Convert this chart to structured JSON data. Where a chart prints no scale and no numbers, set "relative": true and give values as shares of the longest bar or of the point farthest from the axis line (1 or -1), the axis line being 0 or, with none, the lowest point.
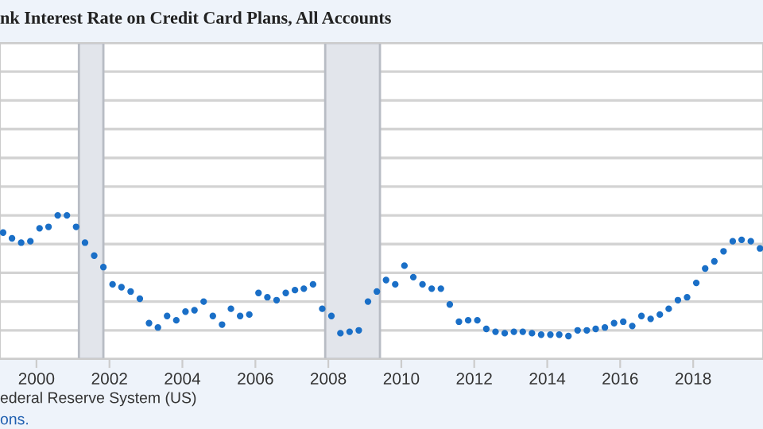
{
  "chart_data": {
    "type": "scatter",
    "title": "nk Interest Rate on Credit Card Plans, All Accounts",
    "relative": true,
    "marker": "circle",
    "grid": "y",
    "xlim": [
      "1999-01",
      "2019-12"
    ],
    "xticks": [
      {
        "value": "2000-01-01",
        "label": "2000"
      },
      {
        "value": "2002-01-01",
        "label": "2002"
      },
      {
        "value": "2004-01-01",
        "label": "2004"
      },
      {
        "value": "2006-01-01",
        "label": "2006"
      },
      {
        "value": "2008-01-01",
        "label": "2008"
      },
      {
        "value": "2010-01-01",
        "label": "2010"
      },
      {
        "value": "2012-01-01",
        "label": "2012"
      },
      {
        "value": "2014-01-01",
        "label": "2014"
      },
      {
        "value": "2016-01-01",
        "label": "2016"
      },
      {
        "value": "2018-01-01",
        "label": "2018"
      }
    ],
    "bands": [
      {
        "axis": "x",
        "from": "2001-03",
        "to": "2001-11",
        "color": "#e2e5eb"
      },
      {
        "axis": "x",
        "from": "2007-12",
        "to": "2009-06",
        "color": "#e2e5eb"
      }
    ],
    "annotations": [
      "ederal Reserve System (US)",
      "ons."
    ],
    "series": [
      {
        "color": "#1a6fc7",
        "x": [
          "1999-02",
          "1999-05",
          "1999-08",
          "1999-11",
          "2000-02",
          "2000-05",
          "2000-08",
          "2000-11",
          "2001-02",
          "2001-05",
          "2001-08",
          "2001-11",
          "2002-02",
          "2002-05",
          "2002-08",
          "2002-11",
          "2003-02",
          "2003-05",
          "2003-08",
          "2003-11",
          "2004-02",
          "2004-05",
          "2004-08",
          "2004-11",
          "2005-02",
          "2005-05",
          "2005-08",
          "2005-11",
          "2006-02",
          "2006-05",
          "2006-08",
          "2006-11",
          "2007-02",
          "2007-05",
          "2007-08",
          "2007-11",
          "2008-02",
          "2008-05",
          "2008-08",
          "2008-11",
          "2009-02",
          "2009-05",
          "2009-08",
          "2009-11",
          "2010-02",
          "2010-05",
          "2010-08",
          "2010-11",
          "2011-02",
          "2011-05",
          "2011-08",
          "2011-11",
          "2012-02",
          "2012-05",
          "2012-08",
          "2012-11",
          "2013-02",
          "2013-05",
          "2013-08",
          "2013-11",
          "2014-02",
          "2014-05",
          "2014-08",
          "2014-11",
          "2015-02",
          "2015-05",
          "2015-08",
          "2015-11",
          "2016-02",
          "2016-05",
          "2016-08",
          "2016-11",
          "2017-02",
          "2017-05",
          "2017-08",
          "2017-11",
          "2018-02",
          "2018-05",
          "2018-08",
          "2018-11",
          "2019-02",
          "2019-05",
          "2019-08",
          "2019-11"
        ],
        "values": [
          0.88,
          0.84,
          0.81,
          0.82,
          0.91,
          0.92,
          1.0,
          1.0,
          0.92,
          0.81,
          0.72,
          0.64,
          0.52,
          0.5,
          0.47,
          0.42,
          0.25,
          0.22,
          0.3,
          0.27,
          0.33,
          0.34,
          0.4,
          0.3,
          0.24,
          0.35,
          0.3,
          0.31,
          0.46,
          0.43,
          0.41,
          0.46,
          0.48,
          0.49,
          0.52,
          0.35,
          0.3,
          0.18,
          0.19,
          0.2,
          0.4,
          0.47,
          0.55,
          0.52,
          0.65,
          0.57,
          0.52,
          0.49,
          0.49,
          0.38,
          0.26,
          0.27,
          0.27,
          0.21,
          0.19,
          0.18,
          0.19,
          0.19,
          0.18,
          0.17,
          0.17,
          0.17,
          0.16,
          0.2,
          0.2,
          0.21,
          0.22,
          0.25,
          0.26,
          0.23,
          0.3,
          0.28,
          0.31,
          0.35,
          0.41,
          0.43,
          0.53,
          0.63,
          0.68,
          0.75,
          0.82,
          0.83,
          0.82,
          0.77
        ]
      }
    ]
  }
}
